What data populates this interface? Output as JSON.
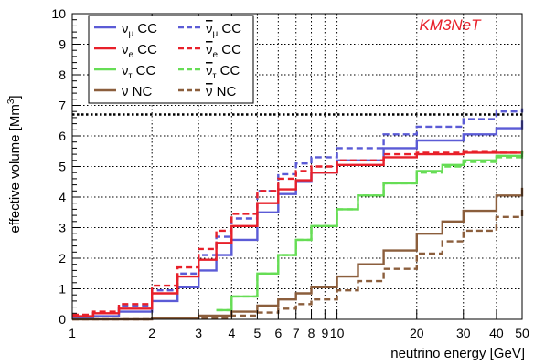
{
  "chart_data": {
    "type": "line",
    "x_scale": "log",
    "xlabel": "neutrino energy [GeV]",
    "ylabel_main": "effective volume [Mm",
    "ylabel_sup": "3",
    "ylabel_tail": "]",
    "xlim": [
      1,
      50
    ],
    "ylim": [
      0,
      10
    ],
    "grid": true,
    "legend_position": "top-left",
    "annotation": "KM3NeT",
    "annotation_color": "#e8202a",
    "reference_line": {
      "y": 6.7,
      "style": "dotted",
      "color": "#000000"
    },
    "x_ticks": [
      {
        "v": 1,
        "label": "1"
      },
      {
        "v": 2,
        "label": "2"
      },
      {
        "v": 3,
        "label": "3"
      },
      {
        "v": 4,
        "label": "4"
      },
      {
        "v": 5,
        "label": "5"
      },
      {
        "v": 6,
        "label": "6"
      },
      {
        "v": 7,
        "label": "7"
      },
      {
        "v": 8,
        "label": "8"
      },
      {
        "v": 9,
        "label": "9"
      },
      {
        "v": 10,
        "label": "10"
      },
      {
        "v": 20,
        "label": "20"
      },
      {
        "v": 30,
        "label": "30"
      },
      {
        "v": 40,
        "label": "40"
      },
      {
        "v": 50,
        "label": "50"
      }
    ],
    "y_ticks": [
      0,
      1,
      2,
      3,
      4,
      5,
      6,
      7,
      8,
      9,
      10
    ],
    "series": [
      {
        "name": "νμ CC",
        "base": "ν",
        "sub": "μ",
        "bar": false,
        "suffix": " CC",
        "color": "#5b5bd6",
        "dashed": false,
        "x": [
          1,
          1.2,
          1.5,
          2,
          2.5,
          3,
          3.5,
          4,
          5,
          6,
          7,
          8,
          10,
          15,
          20,
          30,
          40,
          50
        ],
        "y": [
          0.05,
          0.1,
          0.25,
          0.6,
          1.05,
          1.6,
          2.1,
          2.6,
          3.5,
          4.1,
          4.5,
          4.8,
          5.2,
          5.6,
          5.85,
          6.05,
          6.25,
          6.5
        ]
      },
      {
        "name": "ν̄μ CC",
        "base": "ν",
        "sub": "μ",
        "bar": true,
        "suffix": " CC",
        "color": "#5b5bd6",
        "dashed": true,
        "x": [
          1,
          1.2,
          1.5,
          2,
          2.5,
          3,
          3.5,
          4,
          5,
          6,
          7,
          8,
          10,
          15,
          20,
          30,
          40,
          50
        ],
        "y": [
          0.1,
          0.2,
          0.45,
          0.95,
          1.5,
          2.1,
          2.7,
          3.3,
          4.2,
          4.75,
          5.1,
          5.3,
          5.6,
          6.05,
          6.3,
          6.55,
          6.8,
          6.9
        ]
      },
      {
        "name": "νe CC",
        "base": "ν",
        "sub": "e",
        "bar": false,
        "suffix": " CC",
        "color": "#e8202a",
        "dashed": false,
        "x": [
          1,
          1.2,
          1.5,
          2,
          2.5,
          3,
          3.5,
          4,
          5,
          6,
          7,
          8,
          10,
          15,
          20,
          30,
          40,
          50
        ],
        "y": [
          0.1,
          0.2,
          0.35,
          0.85,
          1.4,
          1.95,
          2.5,
          3.05,
          3.8,
          4.25,
          4.55,
          4.8,
          5.05,
          5.3,
          5.4,
          5.45,
          5.45,
          5.5
        ]
      },
      {
        "name": "ν̄e CC",
        "base": "ν",
        "sub": "e",
        "bar": true,
        "suffix": " CC",
        "color": "#e8202a",
        "dashed": true,
        "x": [
          1,
          1.2,
          1.5,
          2,
          2.5,
          3,
          3.5,
          4,
          5,
          6,
          7,
          8,
          10,
          15,
          20,
          30,
          40,
          50
        ],
        "y": [
          0.15,
          0.25,
          0.5,
          1.1,
          1.7,
          2.3,
          2.9,
          3.45,
          4.2,
          4.6,
          4.85,
          5.0,
          5.2,
          5.4,
          5.45,
          5.5,
          5.45,
          5.45
        ]
      },
      {
        "name": "ντ CC",
        "base": "ν",
        "sub": "τ",
        "bar": false,
        "suffix": " CC",
        "color": "#66dd55",
        "dashed": false,
        "x": [
          3.5,
          4,
          5,
          6,
          7,
          8,
          10,
          12,
          15,
          20,
          25,
          30,
          40,
          50
        ],
        "y": [
          0.3,
          0.75,
          1.5,
          2.1,
          2.6,
          3.05,
          3.6,
          4.05,
          4.45,
          4.85,
          5.05,
          5.2,
          5.35,
          5.5
        ]
      },
      {
        "name": "ν̄τ CC",
        "base": "ν",
        "sub": "τ",
        "bar": true,
        "suffix": " CC",
        "color": "#66dd55",
        "dashed": true,
        "x": [
          3.5,
          4,
          5,
          6,
          7,
          8,
          10,
          12,
          15,
          20,
          25,
          30,
          40,
          50
        ],
        "y": [
          0.3,
          0.75,
          1.5,
          2.1,
          2.6,
          3.05,
          3.6,
          4.05,
          4.45,
          4.8,
          5.0,
          5.15,
          5.3,
          5.35
        ]
      },
      {
        "name": "ν NC",
        "base": "ν",
        "sub": "",
        "bar": false,
        "suffix": " NC",
        "color": "#8b5e3c",
        "dashed": false,
        "x": [
          1,
          2,
          3,
          4,
          5,
          6,
          7,
          8,
          10,
          12,
          15,
          20,
          25,
          30,
          40,
          50
        ],
        "y": [
          0.0,
          0.05,
          0.12,
          0.25,
          0.45,
          0.65,
          0.85,
          1.05,
          1.4,
          1.8,
          2.25,
          2.8,
          3.2,
          3.55,
          4.05,
          4.3
        ]
      },
      {
        "name": "ν̄ NC",
        "base": "ν",
        "sub": "",
        "bar": true,
        "suffix": " NC",
        "color": "#8b5e3c",
        "dashed": true,
        "x": [
          1,
          2,
          3,
          4,
          5,
          6,
          7,
          8,
          10,
          12,
          15,
          20,
          25,
          30,
          40,
          50
        ],
        "y": [
          0.0,
          0.02,
          0.05,
          0.12,
          0.22,
          0.35,
          0.5,
          0.65,
          0.95,
          1.25,
          1.65,
          2.15,
          2.55,
          2.9,
          3.35,
          3.65
        ]
      }
    ]
  }
}
